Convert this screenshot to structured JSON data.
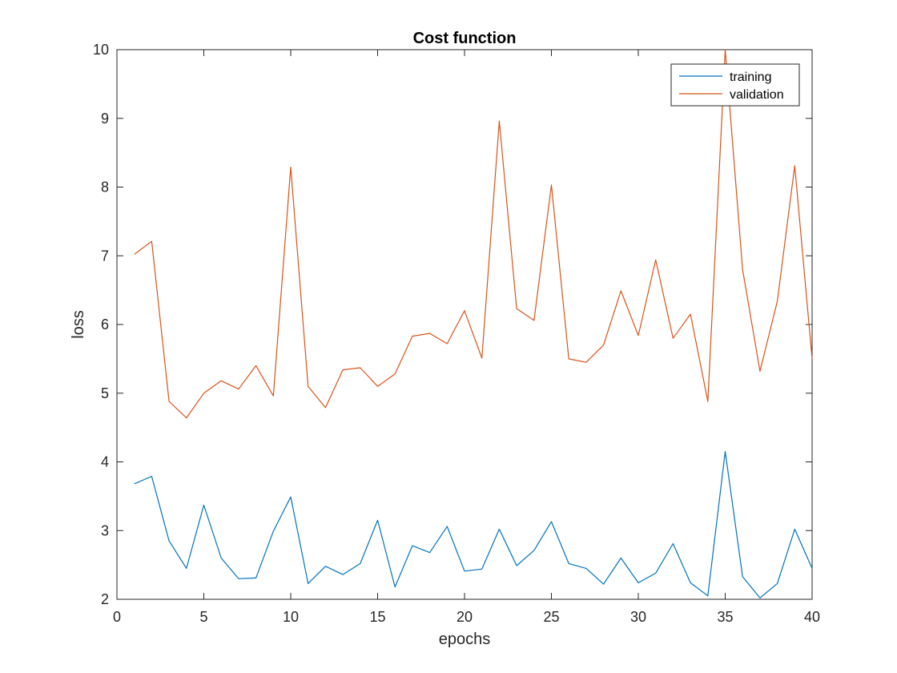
{
  "chart_data": {
    "type": "line",
    "title": "Cost function",
    "xlabel": "epochs",
    "ylabel": "loss",
    "xlim": [
      0,
      40
    ],
    "ylim": [
      2,
      10
    ],
    "xticks": [
      0,
      5,
      10,
      15,
      20,
      25,
      30,
      35,
      40
    ],
    "yticks": [
      2,
      3,
      4,
      5,
      6,
      7,
      8,
      9,
      10
    ],
    "grid": false,
    "legend_position": "top-right",
    "x": [
      1,
      2,
      3,
      4,
      5,
      6,
      7,
      8,
      9,
      10,
      11,
      12,
      13,
      14,
      15,
      16,
      17,
      18,
      19,
      20,
      21,
      22,
      23,
      24,
      25,
      26,
      27,
      28,
      29,
      30,
      31,
      32,
      33,
      34,
      35,
      36,
      37,
      38,
      39,
      40
    ],
    "series": [
      {
        "name": "training",
        "color": "#0072BD",
        "values": [
          3.68,
          3.79,
          2.85,
          2.45,
          3.37,
          2.6,
          2.3,
          2.31,
          2.99,
          3.49,
          2.23,
          2.48,
          2.36,
          2.52,
          3.15,
          2.18,
          2.78,
          2.68,
          3.06,
          2.41,
          2.44,
          3.02,
          2.49,
          2.71,
          3.13,
          2.52,
          2.45,
          2.22,
          2.6,
          2.24,
          2.38,
          2.81,
          2.24,
          2.05,
          4.15,
          2.33,
          2.02,
          2.23,
          3.02,
          2.45
        ]
      },
      {
        "name": "validation",
        "color": "#D95319",
        "values": [
          7.02,
          7.21,
          4.88,
          4.64,
          5.0,
          5.18,
          5.06,
          5.4,
          4.96,
          8.29,
          5.1,
          4.79,
          5.34,
          5.37,
          5.1,
          5.28,
          5.83,
          5.87,
          5.72,
          6.2,
          5.51,
          8.96,
          6.23,
          6.06,
          8.03,
          5.5,
          5.45,
          5.7,
          6.49,
          5.84,
          6.94,
          5.8,
          6.15,
          4.88,
          10.0,
          6.8,
          5.32,
          6.34,
          8.31,
          5.5
        ]
      }
    ]
  }
}
